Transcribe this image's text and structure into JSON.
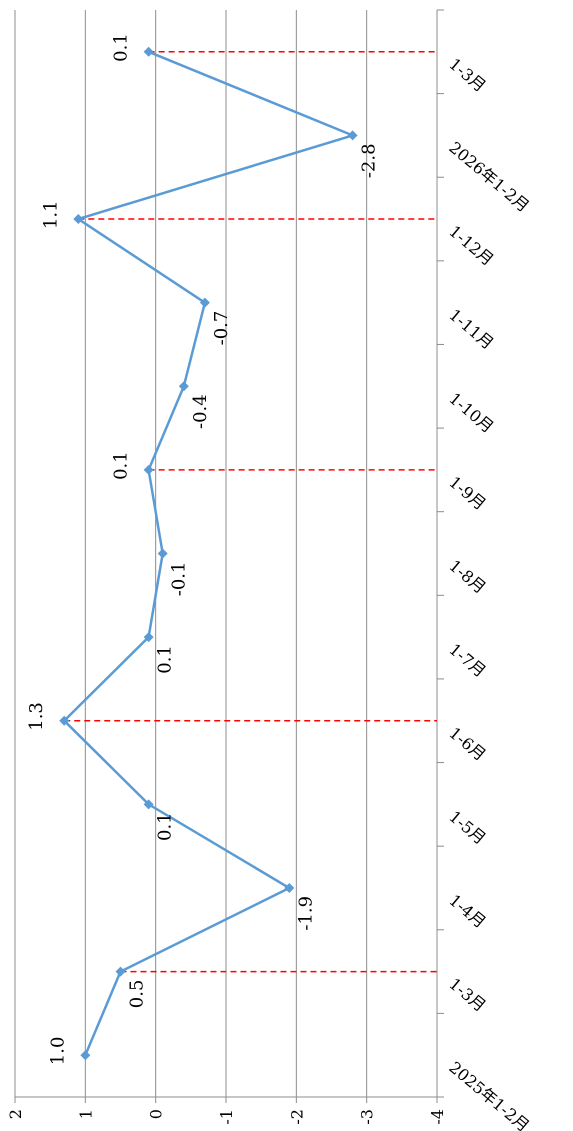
{
  "chart_data": {
    "type": "line",
    "orientation": "rotated-90-clockwise",
    "categories": [
      "2025年1-2月",
      "1-3月",
      "1-4月",
      "1-5月",
      "1-6月",
      "1-7月",
      "1-8月",
      "1-9月",
      "1-10月",
      "1-11月",
      "1-12月",
      "2026年1-2月",
      "1-3月"
    ],
    "series": [
      {
        "values": [
          1.0,
          0.5,
          -1.9,
          0.1,
          1.3,
          0.1,
          -0.1,
          0.1,
          -0.4,
          -0.7,
          1.1,
          -2.8,
          0.1
        ],
        "color": "#5b9bd5"
      }
    ],
    "data_labels": [
      "1.0",
      "0.5",
      "-1.9",
      "0.1",
      "1.3",
      "0.1",
      "-0.1",
      "0.1",
      "-0.4",
      "-0.7",
      "1.1",
      "-2.8",
      "0.1"
    ],
    "dashed_marker_categories": [
      1,
      4,
      7,
      10,
      12
    ],
    "dashed_marker_color": "#ff0000",
    "ylim": [
      -4,
      2
    ],
    "yticks": [
      2,
      1,
      0,
      -1,
      -2,
      -3,
      -4
    ],
    "grid": true
  }
}
